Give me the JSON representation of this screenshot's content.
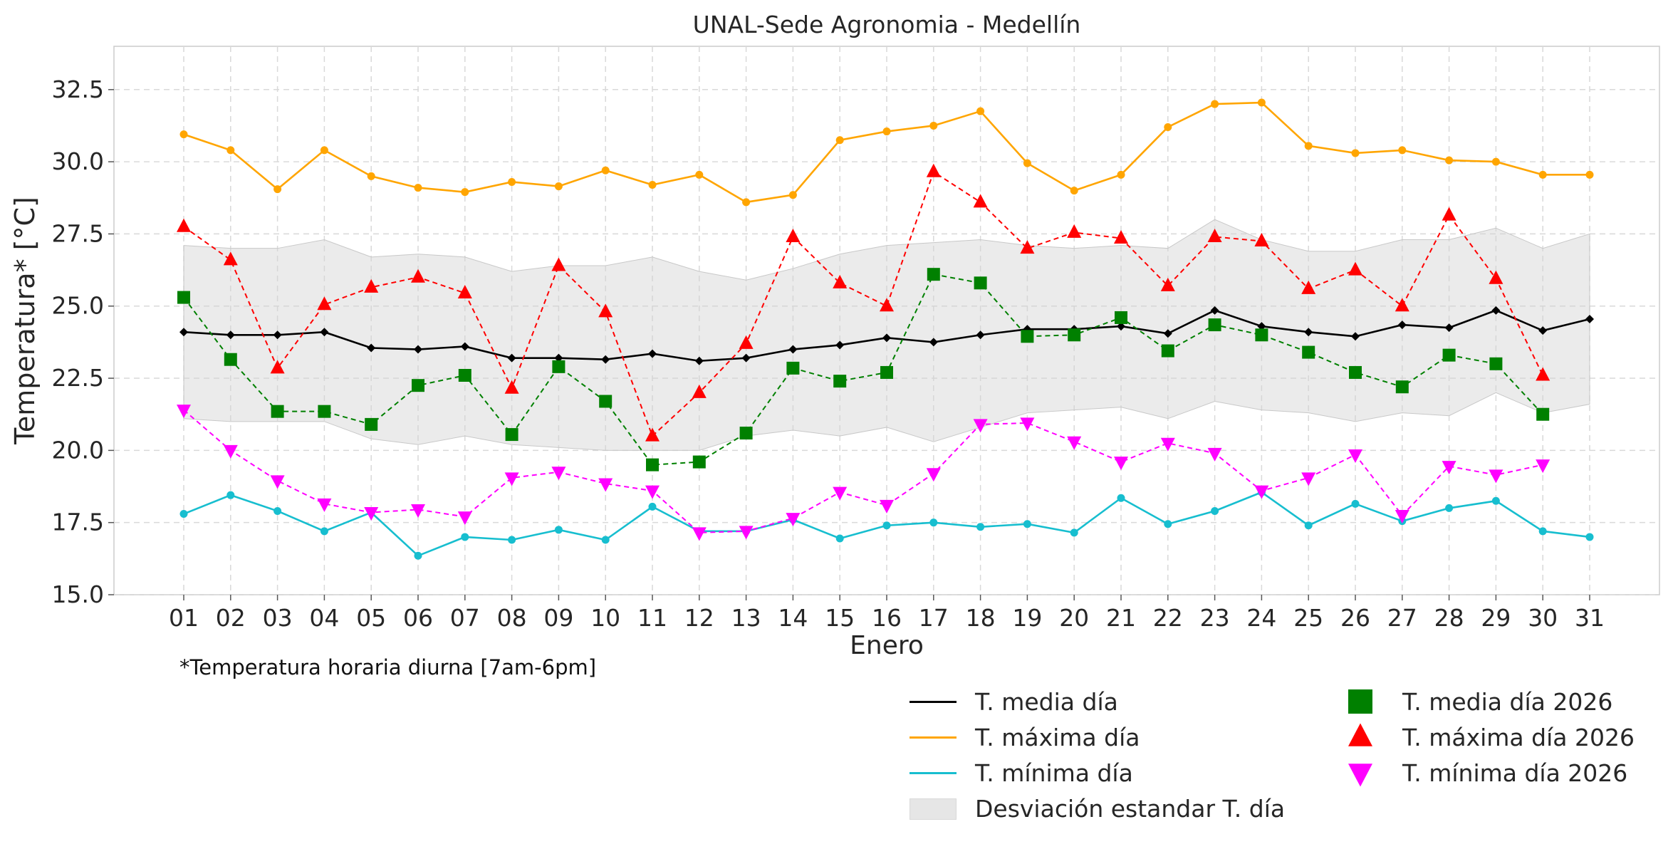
{
  "chart_data": {
    "type": "line",
    "title": "UNAL-Sede Agronomia - Medellín",
    "xlabel": "Enero",
    "ylabel": "Temperatura* [°C]",
    "ylim": [
      15.0,
      34.0
    ],
    "yticks": [
      "15.0",
      "17.5",
      "20.0",
      "22.5",
      "25.0",
      "27.5",
      "30.0",
      "32.5"
    ],
    "categories": [
      "01",
      "02",
      "03",
      "04",
      "05",
      "06",
      "07",
      "08",
      "09",
      "10",
      "11",
      "12",
      "13",
      "14",
      "15",
      "16",
      "17",
      "18",
      "19",
      "20",
      "21",
      "22",
      "23",
      "24",
      "25",
      "26",
      "27",
      "28",
      "29",
      "30",
      "31"
    ],
    "grid": true,
    "legend_placement": "bottom-right",
    "band": {
      "name": "Desviación estandar T. día",
      "color": "#d3d3d3",
      "upper": [
        27.1,
        27.0,
        27.0,
        27.3,
        26.7,
        26.8,
        26.7,
        26.2,
        26.4,
        26.4,
        26.7,
        26.2,
        25.9,
        26.3,
        26.8,
        27.1,
        27.2,
        27.3,
        27.1,
        27.0,
        27.1,
        27.0,
        28.0,
        27.3,
        26.9,
        26.9,
        27.3,
        27.3,
        27.7,
        27.0,
        27.5
      ],
      "lower": [
        21.1,
        21.0,
        21.0,
        21.0,
        20.4,
        20.2,
        20.5,
        20.2,
        20.1,
        20.0,
        20.0,
        20.0,
        20.5,
        20.7,
        20.5,
        20.8,
        20.3,
        20.8,
        21.3,
        21.4,
        21.5,
        21.1,
        21.7,
        21.4,
        21.3,
        21.0,
        21.3,
        21.2,
        22.0,
        21.3,
        21.6
      ]
    },
    "series": [
      {
        "name": "T. media día",
        "color": "#000000",
        "style": "solid",
        "marker": "diamond",
        "values": [
          24.1,
          24.0,
          24.0,
          24.1,
          23.55,
          23.5,
          23.6,
          23.2,
          23.2,
          23.15,
          23.35,
          23.1,
          23.2,
          23.5,
          23.65,
          23.9,
          23.75,
          24.0,
          24.2,
          24.2,
          24.3,
          24.05,
          24.85,
          24.3,
          24.1,
          23.95,
          24.35,
          24.25,
          24.85,
          24.15,
          24.55
        ]
      },
      {
        "name": "T. máxima día",
        "color": "#ffa500",
        "style": "solid",
        "marker": "circle",
        "values": [
          30.95,
          30.4,
          29.05,
          30.4,
          29.5,
          29.1,
          28.95,
          29.3,
          29.15,
          29.7,
          29.2,
          29.55,
          28.6,
          28.85,
          30.75,
          31.05,
          31.25,
          31.75,
          29.95,
          29.0,
          29.55,
          31.2,
          32.0,
          32.05,
          30.55,
          30.3,
          30.4,
          30.05,
          30.0,
          29.55,
          29.55
        ]
      },
      {
        "name": "T. mínima día",
        "color": "#17becf",
        "style": "solid",
        "marker": "circle",
        "values": [
          17.8,
          18.45,
          17.9,
          17.2,
          17.85,
          16.35,
          17.0,
          16.9,
          17.25,
          16.9,
          18.05,
          17.2,
          17.2,
          17.6,
          16.95,
          17.4,
          17.5,
          17.35,
          17.45,
          17.15,
          18.35,
          17.45,
          17.9,
          18.55,
          17.4,
          18.15,
          17.55,
          18.0,
          18.25,
          17.2,
          17.0
        ]
      },
      {
        "name": "T. media día 2026",
        "color": "#008000",
        "style": "dashed",
        "marker": "square",
        "values": [
          25.3,
          23.15,
          21.35,
          21.35,
          20.9,
          22.25,
          22.6,
          20.55,
          22.9,
          21.7,
          19.5,
          19.6,
          20.6,
          22.85,
          22.4,
          22.7,
          26.1,
          25.8,
          23.95,
          24.0,
          24.6,
          23.45,
          24.35,
          24.0,
          23.4,
          22.7,
          22.2,
          23.3,
          23.0,
          21.25,
          null
        ]
      },
      {
        "name": "T. máxima día 2026",
        "color": "#ff0000",
        "style": "dashed",
        "marker": "triangle-up",
        "values": [
          27.75,
          26.6,
          22.85,
          25.05,
          25.65,
          26.0,
          25.45,
          22.15,
          26.4,
          24.8,
          20.5,
          22.0,
          23.7,
          27.4,
          25.8,
          25.0,
          29.65,
          28.6,
          27.0,
          27.55,
          27.35,
          25.7,
          27.4,
          27.25,
          25.6,
          26.25,
          25.0,
          28.15,
          25.95,
          22.6,
          null
        ]
      },
      {
        "name": "T. mínima día 2026",
        "color": "#ff00ff",
        "style": "dashed",
        "marker": "triangle-down",
        "values": [
          21.4,
          20.0,
          18.95,
          18.15,
          17.85,
          17.95,
          17.7,
          19.05,
          19.25,
          18.85,
          18.6,
          17.15,
          17.2,
          17.65,
          18.55,
          18.1,
          19.2,
          20.9,
          20.95,
          20.3,
          19.6,
          20.25,
          19.9,
          18.6,
          19.05,
          19.85,
          17.75,
          19.45,
          19.15,
          19.5,
          null
        ]
      }
    ],
    "footnote": "*Temperatura horaria diurna [7am-6pm]"
  },
  "legend": {
    "left": [
      {
        "label": "T. media día",
        "kind": "line",
        "color": "#000000"
      },
      {
        "label": "T. máxima día",
        "kind": "line",
        "color": "#ffa500"
      },
      {
        "label": "T. mínima día",
        "kind": "line",
        "color": "#17becf"
      },
      {
        "label": "Desviación estandar T. día",
        "kind": "band",
        "color": "#d3d3d3"
      }
    ],
    "right": [
      {
        "label": "T. media día 2026",
        "kind": "square",
        "color": "#008000"
      },
      {
        "label": "T. máxima día 2026",
        "kind": "triangle-up",
        "color": "#ff0000"
      },
      {
        "label": "T. mínima día 2026",
        "kind": "triangle-down",
        "color": "#ff00ff"
      }
    ]
  }
}
